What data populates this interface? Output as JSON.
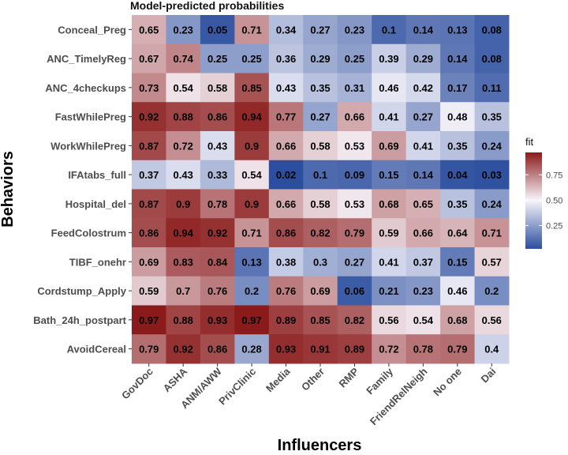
{
  "chart_data": {
    "type": "heatmap",
    "title": "Model-predicted probabilities",
    "xlabel": "Influencers",
    "ylabel": "Behaviors",
    "x_categories": [
      "GovDoc",
      "ASHA",
      "ANM/AWW",
      "PrivClinic",
      "Media",
      "Other",
      "RMP",
      "Family",
      "FriendRelNeigh",
      "No one",
      "Dai"
    ],
    "y_categories": [
      "Conceal_Preg",
      "ANC_TimelyReg",
      "ANC_4checkups",
      "FastWhilePreg",
      "WorkWhilePreg",
      "IFAtabs_full",
      "Hospital_del",
      "FeedColostrum",
      "TIBF_onehr",
      "Cordstump_Apply",
      "Bath_24h_postpart",
      "AvoidCereal"
    ],
    "values": [
      [
        0.65,
        0.23,
        0.05,
        0.71,
        0.34,
        0.27,
        0.23,
        0.1,
        0.14,
        0.13,
        0.08
      ],
      [
        0.67,
        0.74,
        0.25,
        0.25,
        0.36,
        0.29,
        0.25,
        0.39,
        0.29,
        0.14,
        0.08
      ],
      [
        0.73,
        0.54,
        0.58,
        0.85,
        0.43,
        0.35,
        0.31,
        0.46,
        0.42,
        0.17,
        0.11
      ],
      [
        0.92,
        0.88,
        0.86,
        0.94,
        0.77,
        0.27,
        0.66,
        0.41,
        0.27,
        0.48,
        0.35
      ],
      [
        0.87,
        0.72,
        0.43,
        0.9,
        0.66,
        0.58,
        0.53,
        0.69,
        0.41,
        0.35,
        0.24
      ],
      [
        0.37,
        0.43,
        0.33,
        0.54,
        0.02,
        0.1,
        0.09,
        0.15,
        0.14,
        0.04,
        0.03
      ],
      [
        0.87,
        0.9,
        0.78,
        0.9,
        0.66,
        0.58,
        0.53,
        0.68,
        0.65,
        0.35,
        0.24
      ],
      [
        0.86,
        0.94,
        0.92,
        0.71,
        0.86,
        0.82,
        0.79,
        0.59,
        0.66,
        0.64,
        0.71
      ],
      [
        0.69,
        0.83,
        0.84,
        0.13,
        0.38,
        0.3,
        0.27,
        0.41,
        0.37,
        0.15,
        0.57
      ],
      [
        0.59,
        0.7,
        0.76,
        0.2,
        0.76,
        0.69,
        0.06,
        0.21,
        0.23,
        0.46,
        0.2
      ],
      [
        0.97,
        0.88,
        0.93,
        0.97,
        0.89,
        0.85,
        0.82,
        0.56,
        0.54,
        0.68,
        0.56
      ],
      [
        0.79,
        0.92,
        0.86,
        0.28,
        0.93,
        0.91,
        0.89,
        0.72,
        0.78,
        0.79,
        0.4
      ]
    ],
    "legend": {
      "title": "fit",
      "ticks": [
        "0.75",
        "0.50",
        "0.25"
      ],
      "tick_values": [
        0.75,
        0.5,
        0.25
      ],
      "range": [
        0.02,
        0.97
      ],
      "placement": "right",
      "midpoint": 0.5
    },
    "colors": {
      "low": "#2c4e9e",
      "mid": "#f7f5fb",
      "high": "#8b1a1a"
    },
    "grid": false
  }
}
